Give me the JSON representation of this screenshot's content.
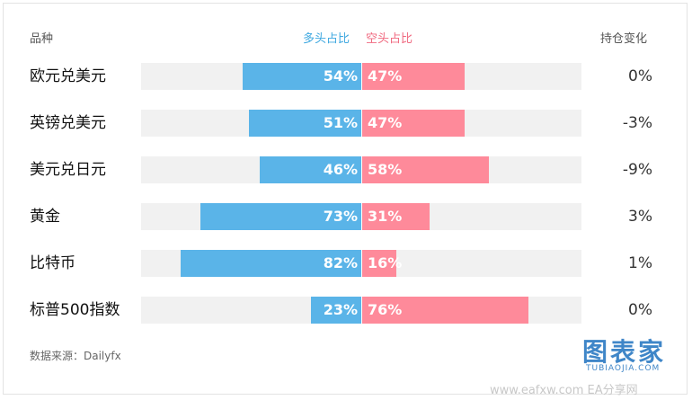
{
  "header": {
    "category": "品种",
    "long": "多头占比",
    "short": "空头占比",
    "change": "持仓变化"
  },
  "chart_data": {
    "type": "bar",
    "categories": [
      "欧元兑美元",
      "英镑兑美元",
      "美元兑日元",
      "黄金",
      "比特币",
      "标普500指数"
    ],
    "series": [
      {
        "name": "多头占比",
        "values": [
          54,
          51,
          46,
          73,
          82,
          23
        ],
        "labels": [
          "54%",
          "51%",
          "46%",
          "73%",
          "82%",
          "23%"
        ],
        "color": "#5ab4e8"
      },
      {
        "name": "空头占比",
        "values": [
          47,
          47,
          58,
          31,
          16,
          76
        ],
        "labels": [
          "47%",
          "47%",
          "58%",
          "31%",
          "16%",
          "76%"
        ],
        "color": "#fe8a9a"
      }
    ],
    "change_labels": [
      "0%",
      "-3%",
      "-9%",
      "3%",
      "1%",
      "0%"
    ],
    "scale_max": 100
  },
  "source": "数据来源：Dailyfx",
  "watermark": {
    "logo_text": "图表家",
    "logo_sub": "TUBIAOJIA.COM",
    "bottom_text": "www.eafxw.com EA分享网"
  }
}
